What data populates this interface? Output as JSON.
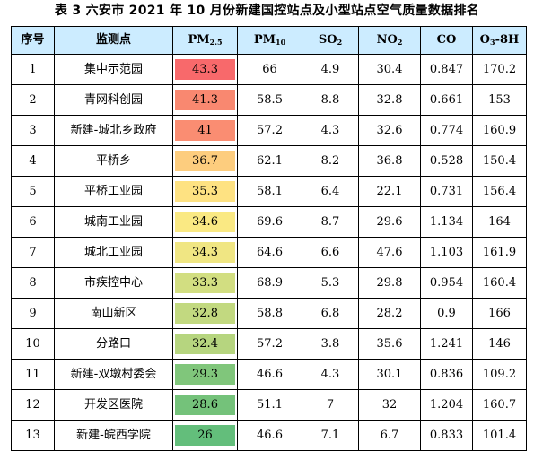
{
  "title": "表 3  六安市 2021 年 10 月份新建国控站点及小型站点空气质量数据排名",
  "headers": {
    "rank": "序号",
    "station": "监测点",
    "pm25_main": "PM",
    "pm25_sub": "2.5",
    "pm10_main": "PM",
    "pm10_sub": "10",
    "so2_main": "SO",
    "so2_sub": "2",
    "no2_main": "NO",
    "no2_sub": "2",
    "co": "CO",
    "o3_main": "O",
    "o3_sub": "3",
    "o3_suffix": "-8H"
  },
  "rows": [
    {
      "rank": "1",
      "station": "集中示范园",
      "pm25": "43.3",
      "pm10": "66",
      "so2": "4.9",
      "no2": "30.4",
      "co": "0.847",
      "o3": "170.2",
      "pm25_color": "#f8696b"
    },
    {
      "rank": "2",
      "station": "青网科创园",
      "pm25": "41.3",
      "pm10": "58.5",
      "so2": "8.8",
      "no2": "32.8",
      "co": "0.661",
      "o3": "153",
      "pm25_color": "#f98870"
    },
    {
      "rank": "3",
      "station": "新建-城北乡政府",
      "pm25": "41",
      "pm10": "57.2",
      "so2": "4.3",
      "no2": "32.6",
      "co": "0.774",
      "o3": "160.9",
      "pm25_color": "#fa8d72"
    },
    {
      "rank": "4",
      "station": "平桥乡",
      "pm25": "36.7",
      "pm10": "62.1",
      "so2": "8.2",
      "no2": "36.8",
      "co": "0.528",
      "o3": "150.4",
      "pm25_color": "#fdcd7e"
    },
    {
      "rank": "5",
      "station": "平桥工业园",
      "pm25": "35.3",
      "pm10": "58.1",
      "so2": "6.4",
      "no2": "22.1",
      "co": "0.731",
      "o3": "156.4",
      "pm25_color": "#fee282"
    },
    {
      "rank": "6",
      "station": "城南工业园",
      "pm25": "34.6",
      "pm10": "69.6",
      "so2": "8.7",
      "no2": "29.6",
      "co": "1.134",
      "o3": "164",
      "pm25_color": "#fae983"
    },
    {
      "rank": "7",
      "station": "城北工业园",
      "pm25": "34.3",
      "pm10": "64.6",
      "so2": "6.6",
      "no2": "47.6",
      "co": "1.103",
      "o3": "161.9",
      "pm25_color": "#f0e683"
    },
    {
      "rank": "8",
      "station": "市疾控中心",
      "pm25": "33.3",
      "pm10": "68.9",
      "so2": "5.3",
      "no2": "29.8",
      "co": "0.954",
      "o3": "160.4",
      "pm25_color": "#d2de81"
    },
    {
      "rank": "9",
      "station": "南山新区",
      "pm25": "32.8",
      "pm10": "58.8",
      "so2": "6.8",
      "no2": "28.2",
      "co": "0.9",
      "o3": "166",
      "pm25_color": "#c2d980"
    },
    {
      "rank": "10",
      "station": "分路口",
      "pm25": "32.4",
      "pm10": "57.2",
      "so2": "3.8",
      "no2": "35.6",
      "co": "1.241",
      "o3": "146",
      "pm25_color": "#b6d57f"
    },
    {
      "rank": "11",
      "station": "新建-双墩村委会",
      "pm25": "29.3",
      "pm10": "46.6",
      "so2": "4.3",
      "no2": "30.1",
      "co": "0.836",
      "o3": "109.2",
      "pm25_color": "#80c67b"
    },
    {
      "rank": "12",
      "station": "开发区医院",
      "pm25": "28.6",
      "pm10": "51.1",
      "so2": "7",
      "no2": "32",
      "co": "1.204",
      "o3": "160.7",
      "pm25_color": "#74c27a"
    },
    {
      "rank": "13",
      "station": "新建-皖西学院",
      "pm25": "26",
      "pm10": "46.6",
      "so2": "7.1",
      "no2": "6.7",
      "co": "0.833",
      "o3": "101.4",
      "pm25_color": "#63be7b"
    }
  ]
}
